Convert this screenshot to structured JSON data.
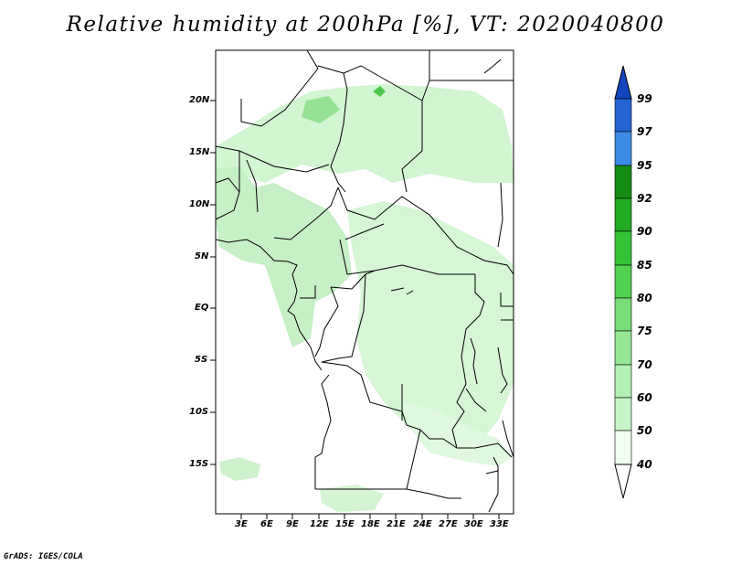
{
  "title": "Relative humidity at 200hPa [%], VT: 2020040800",
  "map": {
    "lat_labels": [
      "20N",
      "15N",
      "10N",
      "5N",
      "EQ",
      "5S",
      "10S",
      "15S"
    ],
    "lon_labels": [
      "3E",
      "6E",
      "9E",
      "12E",
      "15E",
      "18E",
      "21E",
      "24E",
      "27E",
      "30E",
      "33E"
    ],
    "field": "relative humidity",
    "level": "200hPa",
    "unit": "%"
  },
  "colorbar": {
    "levels": [
      "40",
      "50",
      "60",
      "70",
      "75",
      "80",
      "85",
      "90",
      "92",
      "95",
      "97",
      "99"
    ],
    "colors": [
      "#f0fff0",
      "#c8f5c8",
      "#b4f0b4",
      "#96e696",
      "#78dc78",
      "#50d250",
      "#37c337",
      "#23aa23",
      "#148c14",
      "#3c8ce6",
      "#2364d2",
      "#1446be"
    ]
  },
  "credit": "GrADS: IGES/COLA"
}
